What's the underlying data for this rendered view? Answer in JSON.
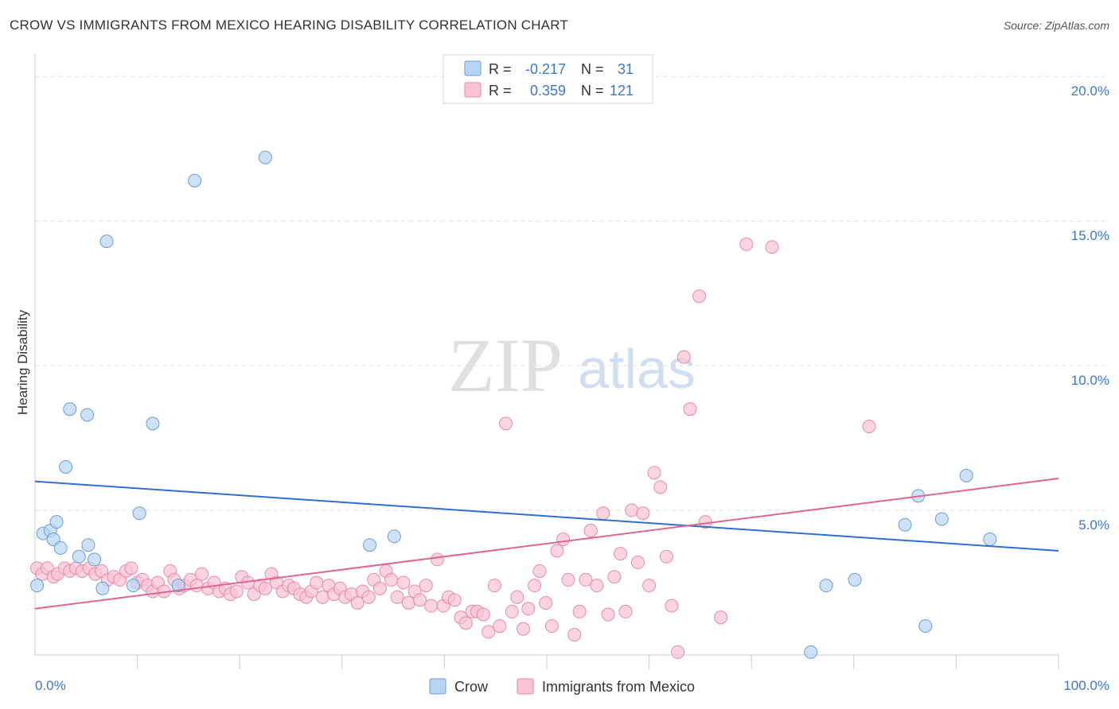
{
  "header": {
    "title": "CROW VS IMMIGRANTS FROM MEXICO HEARING DISABILITY CORRELATION CHART",
    "source": "Source: ZipAtlas.com"
  },
  "watermark": {
    "zip": "ZIP",
    "atlas": "atlas"
  },
  "legend_top": {
    "rows": [
      {
        "r_label": "R =",
        "r_value": "-0.217",
        "n_label": "N =",
        "n_value": "31"
      },
      {
        "r_label": "R =",
        "r_value": "0.359",
        "n_label": "N =",
        "n_value": "121"
      }
    ]
  },
  "legend_bottom": {
    "items": [
      "Crow",
      "Immigrants from Mexico"
    ]
  },
  "colors": {
    "blue_fill": "#b8d4f3",
    "blue_stroke": "#6a9fd8",
    "blue_line": "#2f6fd0",
    "pink_fill": "#f8c3d3",
    "pink_stroke": "#e88aa8",
    "pink_line": "#e0658f",
    "axis_label": "#3a78c9",
    "grid": "#dddddd"
  },
  "chart_data": {
    "type": "scatter",
    "title": "CROW VS IMMIGRANTS FROM MEXICO HEARING DISABILITY CORRELATION CHART",
    "xlabel": "",
    "ylabel": "Hearing Disability",
    "xlim": [
      0,
      100
    ],
    "ylim": [
      0,
      20.5
    ],
    "x_tick_labels": [
      "0.0%",
      "100.0%"
    ],
    "y_ticks": [
      5,
      10,
      15,
      20
    ],
    "y_tick_labels": [
      "5.0%",
      "10.0%",
      "15.0%",
      "20.0%"
    ],
    "grid": true,
    "legend_position": "top-center",
    "series": [
      {
        "name": "Crow",
        "r": -0.217,
        "n": 31,
        "trend": {
          "x": [
            0,
            100
          ],
          "y": [
            6.0,
            3.6
          ]
        },
        "points": [
          [
            0.2,
            2.4
          ],
          [
            0.8,
            4.2
          ],
          [
            1.5,
            4.3
          ],
          [
            1.8,
            4.0
          ],
          [
            2.1,
            4.6
          ],
          [
            2.5,
            3.7
          ],
          [
            3.0,
            6.5
          ],
          [
            3.4,
            8.5
          ],
          [
            4.3,
            3.4
          ],
          [
            5.1,
            8.3
          ],
          [
            5.2,
            3.8
          ],
          [
            5.8,
            3.3
          ],
          [
            6.6,
            2.3
          ],
          [
            7.0,
            14.3
          ],
          [
            9.6,
            2.4
          ],
          [
            10.2,
            4.9
          ],
          [
            11.5,
            8.0
          ],
          [
            14.0,
            2.4
          ],
          [
            15.6,
            16.4
          ],
          [
            22.5,
            17.2
          ],
          [
            32.7,
            3.8
          ],
          [
            35.1,
            4.1
          ],
          [
            75.8,
            0.1
          ],
          [
            77.3,
            2.4
          ],
          [
            80.1,
            2.6
          ],
          [
            85.0,
            4.5
          ],
          [
            86.3,
            5.5
          ],
          [
            87.0,
            1.0
          ],
          [
            88.6,
            4.7
          ],
          [
            91.0,
            6.2
          ],
          [
            93.3,
            4.0
          ]
        ]
      },
      {
        "name": "Immigrants from Mexico",
        "r": 0.359,
        "n": 121,
        "trend": {
          "x": [
            0,
            100
          ],
          "y": [
            1.6,
            6.1
          ]
        },
        "points": [
          [
            0.2,
            3.0
          ],
          [
            0.7,
            2.8
          ],
          [
            1.2,
            3.0
          ],
          [
            1.8,
            2.7
          ],
          [
            2.2,
            2.8
          ],
          [
            2.9,
            3.0
          ],
          [
            3.4,
            2.9
          ],
          [
            4.0,
            3.0
          ],
          [
            4.6,
            2.9
          ],
          [
            5.3,
            3.0
          ],
          [
            5.9,
            2.8
          ],
          [
            6.5,
            2.9
          ],
          [
            7.1,
            2.6
          ],
          [
            7.7,
            2.7
          ],
          [
            8.3,
            2.6
          ],
          [
            8.9,
            2.9
          ],
          [
            9.4,
            3.0
          ],
          [
            10.0,
            2.5
          ],
          [
            10.5,
            2.6
          ],
          [
            11.0,
            2.4
          ],
          [
            11.5,
            2.2
          ],
          [
            12.0,
            2.5
          ],
          [
            12.6,
            2.2
          ],
          [
            13.2,
            2.9
          ],
          [
            13.6,
            2.6
          ],
          [
            14.1,
            2.3
          ],
          [
            14.6,
            2.4
          ],
          [
            15.2,
            2.6
          ],
          [
            15.8,
            2.4
          ],
          [
            16.3,
            2.8
          ],
          [
            16.9,
            2.3
          ],
          [
            17.5,
            2.5
          ],
          [
            18.0,
            2.2
          ],
          [
            18.6,
            2.3
          ],
          [
            19.1,
            2.1
          ],
          [
            19.7,
            2.2
          ],
          [
            20.2,
            2.7
          ],
          [
            20.8,
            2.5
          ],
          [
            21.4,
            2.1
          ],
          [
            22.0,
            2.4
          ],
          [
            22.5,
            2.3
          ],
          [
            23.1,
            2.8
          ],
          [
            23.6,
            2.5
          ],
          [
            24.2,
            2.2
          ],
          [
            24.8,
            2.4
          ],
          [
            25.3,
            2.3
          ],
          [
            25.9,
            2.1
          ],
          [
            26.5,
            2.0
          ],
          [
            27.0,
            2.2
          ],
          [
            27.5,
            2.5
          ],
          [
            28.1,
            2.0
          ],
          [
            28.7,
            2.4
          ],
          [
            29.2,
            2.1
          ],
          [
            29.8,
            2.3
          ],
          [
            30.3,
            2.0
          ],
          [
            30.9,
            2.1
          ],
          [
            31.5,
            1.8
          ],
          [
            32.0,
            2.2
          ],
          [
            32.6,
            2.0
          ],
          [
            33.1,
            2.6
          ],
          [
            33.7,
            2.3
          ],
          [
            34.3,
            2.9
          ],
          [
            34.8,
            2.6
          ],
          [
            35.4,
            2.0
          ],
          [
            36.0,
            2.5
          ],
          [
            36.5,
            1.8
          ],
          [
            37.1,
            2.2
          ],
          [
            37.6,
            1.9
          ],
          [
            38.2,
            2.4
          ],
          [
            38.7,
            1.7
          ],
          [
            39.3,
            3.3
          ],
          [
            39.9,
            1.7
          ],
          [
            40.4,
            2.0
          ],
          [
            41.0,
            1.9
          ],
          [
            41.6,
            1.3
          ],
          [
            42.1,
            1.1
          ],
          [
            42.7,
            1.5
          ],
          [
            43.2,
            1.5
          ],
          [
            43.8,
            1.4
          ],
          [
            44.3,
            0.8
          ],
          [
            44.9,
            2.4
          ],
          [
            45.4,
            1.0
          ],
          [
            46.0,
            8.0
          ],
          [
            46.6,
            1.5
          ],
          [
            47.1,
            2.0
          ],
          [
            47.7,
            0.9
          ],
          [
            48.2,
            1.6
          ],
          [
            48.8,
            2.4
          ],
          [
            49.3,
            2.9
          ],
          [
            49.9,
            1.8
          ],
          [
            50.5,
            1.0
          ],
          [
            51.0,
            3.6
          ],
          [
            51.6,
            4.0
          ],
          [
            52.1,
            2.6
          ],
          [
            52.7,
            0.7
          ],
          [
            53.2,
            1.5
          ],
          [
            53.8,
            2.6
          ],
          [
            54.3,
            4.3
          ],
          [
            54.9,
            2.4
          ],
          [
            55.5,
            4.9
          ],
          [
            56.0,
            1.4
          ],
          [
            56.6,
            2.7
          ],
          [
            57.2,
            3.5
          ],
          [
            57.7,
            1.5
          ],
          [
            58.3,
            5.0
          ],
          [
            58.9,
            3.2
          ],
          [
            59.4,
            4.9
          ],
          [
            60.0,
            2.4
          ],
          [
            60.5,
            6.3
          ],
          [
            61.1,
            5.8
          ],
          [
            61.7,
            3.4
          ],
          [
            62.2,
            1.7
          ],
          [
            62.8,
            0.1
          ],
          [
            63.4,
            10.3
          ],
          [
            64.0,
            8.5
          ],
          [
            64.9,
            12.4
          ],
          [
            65.5,
            4.6
          ],
          [
            67.0,
            1.3
          ],
          [
            69.5,
            14.2
          ],
          [
            72.0,
            14.1
          ],
          [
            81.5,
            7.9
          ]
        ]
      }
    ]
  }
}
